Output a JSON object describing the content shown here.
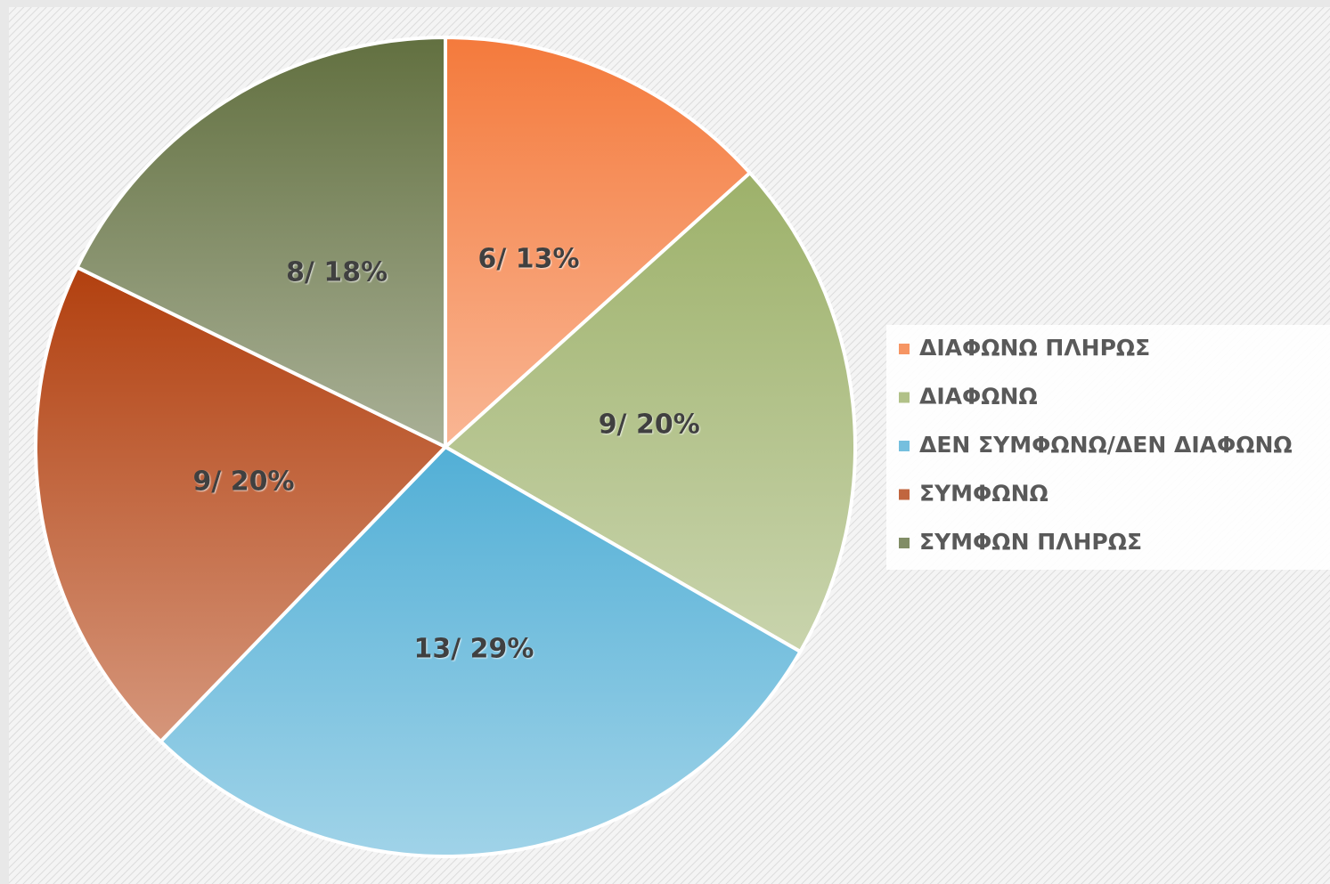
{
  "chart_data": {
    "type": "pie",
    "categories": [
      "ΔΙΑΦΩΝΩ ΠΛΗΡΩΣ",
      "ΔΙΑΦΩΝΩ",
      "ΔΕΝ ΣΥΜΦΩΝΩ/ΔΕΝ ΔΙΑΦΩΝΩ",
      "ΣΥΜΦΩΝΩ",
      "ΣΥΜΦΩΝ ΠΛΗΡΩΣ"
    ],
    "values": [
      6,
      9,
      13,
      9,
      8
    ],
    "value_labels": [
      "6/ 13%",
      "9/ 20%",
      "13/ 29%",
      "9/ 20%",
      "8/ 18%"
    ],
    "colors": [
      "#f47a3c",
      "#9db16a",
      "#52afd6",
      "#b2400f",
      "#627040"
    ],
    "legend": "right"
  }
}
